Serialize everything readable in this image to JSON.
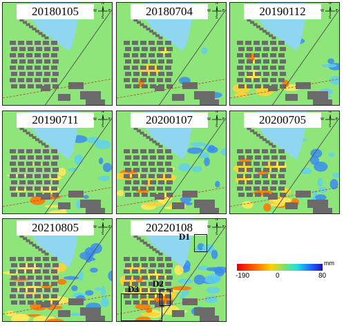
{
  "panels": [
    {
      "date": "20180105",
      "deformation_level": 0.0
    },
    {
      "date": "20180704",
      "deformation_level": 0.15
    },
    {
      "date": "20190112",
      "deformation_level": 0.3
    },
    {
      "date": "20190711",
      "deformation_level": 0.45
    },
    {
      "date": "20200107",
      "deformation_level": 0.6
    },
    {
      "date": "20200705",
      "deformation_level": 0.7
    },
    {
      "date": "20210805",
      "deformation_level": 0.85
    },
    {
      "date": "20220108",
      "deformation_level": 1.0
    }
  ],
  "zones": [
    "D1",
    "D2",
    "D3"
  ],
  "compass": {
    "north": "N",
    "west": "W",
    "east": "E",
    "south": "S"
  },
  "legend": {
    "unit": "mm",
    "min": "-190",
    "mid": "0",
    "max": "80",
    "colors": [
      "#e60000",
      "#ff6a00",
      "#ffd200",
      "#7fe06a",
      "#20e0e0",
      "#1f5bff",
      "#1a1ab0"
    ]
  },
  "map_colors": {
    "water": "#8fd6f0",
    "land_stable": "#8ee67a",
    "buildings": "#6b6b6b"
  }
}
